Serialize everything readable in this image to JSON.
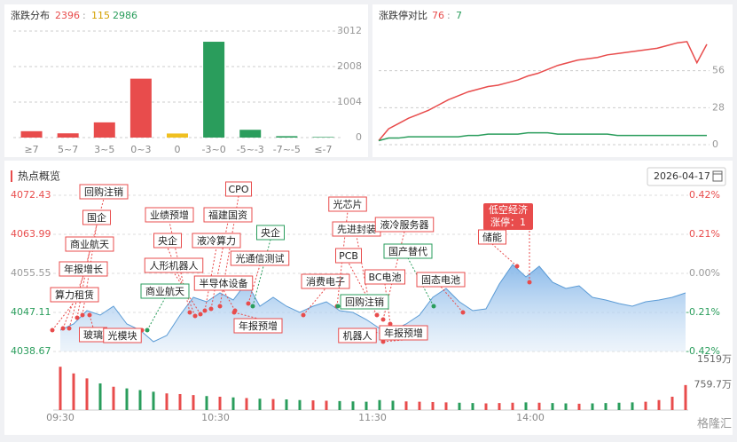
{
  "distribution": {
    "type": "bar",
    "title": "涨跌分布",
    "up": "2396",
    "sep": ":",
    "flat": "115",
    "down": "2986",
    "categories": [
      "≥7",
      "5~7",
      "3~5",
      "0~3",
      "0",
      "-3~0",
      "-5~-3",
      "-7~-5",
      "≤-7"
    ],
    "values": [
      180,
      120,
      430,
      1666,
      115,
      2710,
      220,
      40,
      16
    ],
    "colors": [
      "#e84c4c",
      "#e84c4c",
      "#e84c4c",
      "#e84c4c",
      "#f0c020",
      "#2a9d5c",
      "#2a9d5c",
      "#2a9d5c",
      "#2a9d5c"
    ],
    "ylim": [
      0,
      3012
    ],
    "yticks": [
      0,
      1004,
      2008,
      3012
    ],
    "grid": true
  },
  "limit": {
    "type": "line",
    "title": "涨跌停对比",
    "up": "76",
    "sep": ":",
    "down": "7",
    "ylim": [
      0,
      84
    ],
    "yticks": [
      0,
      28,
      56
    ],
    "grid": true,
    "series": [
      {
        "color": "#e84c4c",
        "values": [
          3,
          12,
          16,
          20,
          23,
          26,
          30,
          34,
          37,
          40,
          42,
          44,
          45,
          47,
          49,
          52,
          54,
          57,
          60,
          62,
          64,
          65,
          66,
          68,
          69,
          70,
          71,
          72,
          73,
          75,
          77,
          78,
          62,
          76
        ]
      },
      {
        "color": "#2a9d5c",
        "values": [
          3,
          5,
          5,
          6,
          6,
          6,
          6,
          6,
          6,
          7,
          7,
          8,
          8,
          8,
          8,
          9,
          9,
          9,
          8,
          8,
          8,
          8,
          8,
          8,
          7,
          7,
          7,
          7,
          7,
          7,
          7,
          7,
          7,
          7
        ]
      }
    ]
  },
  "hot": {
    "type": "area",
    "title": "热点概览",
    "date": "2026-04-17",
    "x_labels": [
      "09:30",
      "10:30",
      "11:30",
      "14:00"
    ],
    "values": [
      4043.28,
      4044.62,
      4047.5,
      4046.54,
      4048.46,
      4044.62,
      4043.28,
      4040.78,
      4042.13,
      4046.54,
      4050.37,
      4049.41,
      4051.33,
      4049.8,
      4053.63,
      4048.46,
      4050.37,
      4048.46,
      4047.11,
      4048.46,
      4049.41,
      4047.5,
      4047.11,
      4045.58,
      4043.66,
      4043.28,
      4044.62,
      4046.54,
      4050.37,
      4052.29,
      4049.41,
      4047.5,
      4047.88,
      4053.25,
      4057.47,
      4054.78,
      4057.09,
      4053.63,
      4052.29,
      4052.87,
      4050.37,
      4049.8,
      4049.03,
      4048.46,
      4049.41,
      4049.8,
      4050.37,
      4051.33
    ],
    "color": "#5b9bd5",
    "ylim": [
      4038.67,
      4072.43
    ],
    "yticks": [
      4038.67,
      4047.11,
      4055.55,
      4063.99,
      4072.43
    ],
    "y2lim": [
      -0.42,
      0.42
    ],
    "y2ticks": [
      {
        "value": -0.42,
        "label": "-0.42%"
      },
      {
        "value": -0.21,
        "label": "-0.21%"
      },
      {
        "value": 0,
        "label": "0.00%"
      },
      {
        "value": 0.21,
        "label": "0.21%"
      },
      {
        "value": 0.42,
        "label": "0.42%"
      }
    ],
    "volume": {
      "values": [
        1300,
        1100,
        950,
        800,
        700,
        650,
        600,
        550,
        500,
        480,
        450,
        420,
        400,
        380,
        360,
        340,
        330,
        320,
        300,
        290,
        280,
        270,
        260,
        250,
        300,
        280,
        260,
        250,
        240,
        230,
        220,
        210,
        200,
        210,
        220,
        230,
        220,
        210,
        200,
        190,
        200,
        210,
        220,
        230,
        250,
        300,
        400,
        750
      ],
      "ylim": [
        0,
        1519
      ],
      "yticks": [
        {
          "value": 759.7,
          "label": "759.7万"
        },
        {
          "value": 1519,
          "label": "1519万"
        }
      ]
    },
    "annotations": [
      {
        "text": "回购注销",
        "color": "#e84c4c"
      },
      {
        "text": "国企",
        "color": "#e84c4c"
      },
      {
        "text": "商业航天",
        "color": "#e84c4c"
      },
      {
        "text": "年报增长",
        "color": "#e84c4c"
      },
      {
        "text": "算力租赁",
        "color": "#e84c4c"
      },
      {
        "text": "玻璃",
        "color": "#e84c4c"
      },
      {
        "text": "光模块",
        "color": "#e84c4c"
      },
      {
        "text": "业绩预增",
        "color": "#e84c4c"
      },
      {
        "text": "央企",
        "color": "#e84c4c"
      },
      {
        "text": "人形机器人",
        "color": "#e84c4c"
      },
      {
        "text": "商业航天",
        "color": "#2a9d5c"
      },
      {
        "text": "CPO",
        "color": "#e84c4c"
      },
      {
        "text": "福建国资",
        "color": "#e84c4c"
      },
      {
        "text": "液冷算力",
        "color": "#e84c4c"
      },
      {
        "text": "半导体设备",
        "color": "#e84c4c"
      },
      {
        "text": "央企",
        "color": "#2a9d5c"
      },
      {
        "text": "光通信测试",
        "color": "#e84c4c"
      },
      {
        "text": "年报预增",
        "color": "#e84c4c"
      },
      {
        "text": "消费电子",
        "color": "#e84c4c"
      },
      {
        "text": "光芯片",
        "color": "#e84c4c"
      },
      {
        "text": "先进封装",
        "color": "#e84c4c"
      },
      {
        "text": "PCB",
        "color": "#e84c4c"
      },
      {
        "text": "液冷服务器",
        "color": "#e84c4c"
      },
      {
        "text": "国产替代",
        "color": "#2a9d5c"
      },
      {
        "text": "BC电池",
        "color": "#e84c4c"
      },
      {
        "text": "固态电池",
        "color": "#e84c4c"
      },
      {
        "text": "回购注销",
        "color": "#2a9d5c"
      },
      {
        "text": "机器人",
        "color": "#e84c4c"
      },
      {
        "text": "年报预增",
        "color": "#e84c4c"
      },
      {
        "text": "储能",
        "color": "#e84c4c"
      }
    ],
    "highlight": {
      "title": "低空经济",
      "subtitle": "涨停：1"
    }
  },
  "watermark": "格隆汇"
}
